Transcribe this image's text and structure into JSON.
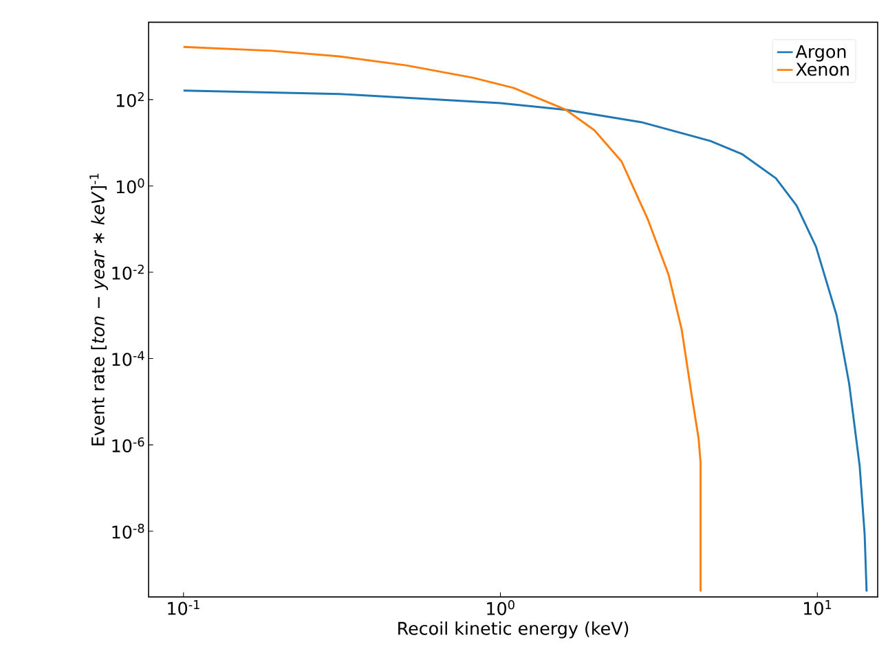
{
  "chart_data": {
    "type": "line",
    "xlabel": "Recoil kinetic energy (keV)",
    "ylabel": "Event rate [*ton − year ∗ keV*]$^{-1}$",
    "log": "xy",
    "legend": "top right",
    "xlim": [
      0.0776,
      15.5
    ],
    "ylim": [
      3e-10,
      6200
    ],
    "xticks": [
      {
        "value": 0.1,
        "label": "10$^{-1}$"
      },
      {
        "value": 1,
        "label": "10$^{0}$"
      },
      {
        "value": 10,
        "label": "10$^{1}$"
      }
    ],
    "yticks": [
      {
        "value": 1e-08,
        "label": "10$^{-8}$"
      },
      {
        "value": 1e-06,
        "label": "10$^{-6}$"
      },
      {
        "value": 0.0001,
        "label": "10$^{-4}$"
      },
      {
        "value": 0.01,
        "label": "10$^{-2}$"
      },
      {
        "value": 1,
        "label": "10$^{0}$"
      },
      {
        "value": 100,
        "label": "10$^{2}$"
      }
    ],
    "series": [
      {
        "name": "Argon",
        "color": "#1f77b4",
        "x": [
          0.1,
          0.31,
          1.0,
          1.61,
          2.78,
          4.6,
          5.8,
          7.4,
          8.6,
          9.9,
          11.5,
          12.6,
          13.6,
          14.1,
          14.3
        ],
        "values": [
          162,
          135,
          83,
          58,
          30,
          11,
          5.4,
          1.5,
          0.35,
          0.039,
          0.001,
          2.6e-05,
          3.2e-07,
          8.3e-09,
          4e-10
        ]
      },
      {
        "name": "Xenon",
        "color": "#ff7f0e",
        "x": [
          0.1,
          0.19,
          0.31,
          0.505,
          0.82,
          1.1,
          1.61,
          1.98,
          2.41,
          2.92,
          3.39,
          3.73,
          4.02,
          4.22,
          4.28,
          4.28
        ],
        "values": [
          1660,
          1350,
          1000,
          620,
          320,
          186,
          58,
          19.5,
          3.7,
          0.166,
          0.0089,
          0.00048,
          1.3e-05,
          1.4e-06,
          3.9e-07,
          4e-10
        ]
      }
    ]
  }
}
